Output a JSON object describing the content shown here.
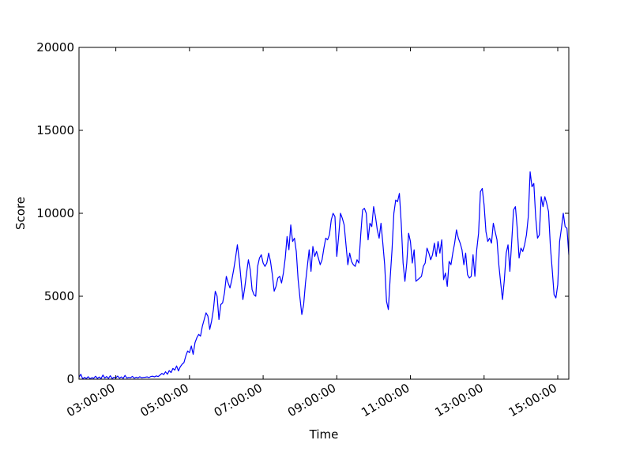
{
  "chart_data": {
    "type": "line",
    "title": "",
    "xlabel": "Time",
    "ylabel": "Score",
    "ylim": [
      0,
      20000
    ],
    "xlim": [
      "02:00:00",
      "15:18:00"
    ],
    "yticks": [
      0,
      5000,
      10000,
      15000,
      20000
    ],
    "yticklabels": [
      "0",
      "5000",
      "10000",
      "15000",
      "20000"
    ],
    "xticks": [
      "03:00:00",
      "05:00:00",
      "07:00:00",
      "09:00:00",
      "11:00:00",
      "13:00:00",
      "15:00:00"
    ],
    "grid": false,
    "legend": "none",
    "series": [
      {
        "color": "#0000ff",
        "x": [
          "02:00:00",
          "02:03:00",
          "02:06:00",
          "02:09:00",
          "02:12:00",
          "02:15:00",
          "02:18:00",
          "02:21:00",
          "02:24:00",
          "02:27:00",
          "02:30:00",
          "02:33:00",
          "02:36:00",
          "02:39:00",
          "02:42:00",
          "02:45:00",
          "02:48:00",
          "02:51:00",
          "02:54:00",
          "02:57:00",
          "03:00:00",
          "03:03:00",
          "03:06:00",
          "03:09:00",
          "03:12:00",
          "03:15:00",
          "03:18:00",
          "03:21:00",
          "03:24:00",
          "03:27:00",
          "03:30:00",
          "03:33:00",
          "03:36:00",
          "03:39:00",
          "03:42:00",
          "03:45:00",
          "03:48:00",
          "03:51:00",
          "03:54:00",
          "03:57:00",
          "04:00:00",
          "04:03:00",
          "04:06:00",
          "04:09:00",
          "04:12:00",
          "04:15:00",
          "04:18:00",
          "04:21:00",
          "04:24:00",
          "04:27:00",
          "04:30:00",
          "04:33:00",
          "04:36:00",
          "04:39:00",
          "04:42:00",
          "04:45:00",
          "04:48:00",
          "04:51:00",
          "04:54:00",
          "04:57:00",
          "05:00:00",
          "05:03:00",
          "05:06:00",
          "05:09:00",
          "05:12:00",
          "05:15:00",
          "05:18:00",
          "05:21:00",
          "05:24:00",
          "05:27:00",
          "05:30:00",
          "05:33:00",
          "05:36:00",
          "05:39:00",
          "05:42:00",
          "05:45:00",
          "05:48:00",
          "05:51:00",
          "05:54:00",
          "05:57:00",
          "06:00:00",
          "06:03:00",
          "06:06:00",
          "06:09:00",
          "06:12:00",
          "06:15:00",
          "06:18:00",
          "06:21:00",
          "06:24:00",
          "06:27:00",
          "06:30:00",
          "06:33:00",
          "06:36:00",
          "06:39:00",
          "06:42:00",
          "06:45:00",
          "06:48:00",
          "06:51:00",
          "06:54:00",
          "06:57:00",
          "07:00:00",
          "07:03:00",
          "07:06:00",
          "07:09:00",
          "07:12:00",
          "07:15:00",
          "07:18:00",
          "07:21:00",
          "07:24:00",
          "07:27:00",
          "07:30:00",
          "07:33:00",
          "07:36:00",
          "07:39:00",
          "07:42:00",
          "07:45:00",
          "07:48:00",
          "07:51:00",
          "07:54:00",
          "07:57:00",
          "08:00:00",
          "08:03:00",
          "08:06:00",
          "08:09:00",
          "08:12:00",
          "08:15:00",
          "08:18:00",
          "08:21:00",
          "08:24:00",
          "08:27:00",
          "08:30:00",
          "08:33:00",
          "08:36:00",
          "08:39:00",
          "08:42:00",
          "08:45:00",
          "08:48:00",
          "08:51:00",
          "08:54:00",
          "08:57:00",
          "09:00:00",
          "09:03:00",
          "09:06:00",
          "09:09:00",
          "09:12:00",
          "09:15:00",
          "09:18:00",
          "09:21:00",
          "09:24:00",
          "09:27:00",
          "09:30:00",
          "09:33:00",
          "09:36:00",
          "09:39:00",
          "09:42:00",
          "09:45:00",
          "09:48:00",
          "09:51:00",
          "09:54:00",
          "09:57:00",
          "10:00:00",
          "10:03:00",
          "10:06:00",
          "10:09:00",
          "10:12:00",
          "10:15:00",
          "10:18:00",
          "10:21:00",
          "10:24:00",
          "10:27:00",
          "10:30:00",
          "10:33:00",
          "10:36:00",
          "10:39:00",
          "10:42:00",
          "10:45:00",
          "10:48:00",
          "10:51:00",
          "10:54:00",
          "10:57:00",
          "11:00:00",
          "11:03:00",
          "11:06:00",
          "11:09:00",
          "11:12:00",
          "11:15:00",
          "11:18:00",
          "11:21:00",
          "11:24:00",
          "11:27:00",
          "11:30:00",
          "11:33:00",
          "11:36:00",
          "11:39:00",
          "11:42:00",
          "11:45:00",
          "11:48:00",
          "11:51:00",
          "11:54:00",
          "11:57:00",
          "12:00:00",
          "12:03:00",
          "12:06:00",
          "12:09:00",
          "12:12:00",
          "12:15:00",
          "12:18:00",
          "12:21:00",
          "12:24:00",
          "12:27:00",
          "12:30:00",
          "12:33:00",
          "12:36:00",
          "12:39:00",
          "12:42:00",
          "12:45:00",
          "12:48:00",
          "12:51:00",
          "12:54:00",
          "12:57:00",
          "13:00:00",
          "13:03:00",
          "13:06:00",
          "13:09:00",
          "13:12:00",
          "13:15:00",
          "13:18:00",
          "13:21:00",
          "13:24:00",
          "13:27:00",
          "13:30:00",
          "13:33:00",
          "13:36:00",
          "13:39:00",
          "13:42:00",
          "13:45:00",
          "13:48:00",
          "13:51:00",
          "13:54:00",
          "13:57:00",
          "14:00:00",
          "14:03:00",
          "14:06:00",
          "14:09:00",
          "14:12:00",
          "14:15:00",
          "14:18:00",
          "14:21:00",
          "14:24:00",
          "14:27:00",
          "14:30:00",
          "14:33:00",
          "14:36:00",
          "14:39:00",
          "14:42:00",
          "14:45:00",
          "14:48:00",
          "14:51:00",
          "14:54:00",
          "14:57:00",
          "15:00:00",
          "15:03:00",
          "15:06:00",
          "15:09:00",
          "15:12:00",
          "15:15:00",
          "15:18:00"
        ],
        "y": [
          120,
          300,
          20,
          110,
          40,
          150,
          30,
          90,
          60,
          180,
          50,
          130,
          40,
          250,
          70,
          160,
          50,
          210,
          40,
          120,
          80,
          190,
          60,
          140,
          50,
          230,
          70,
          110,
          90,
          170,
          60,
          120,
          80,
          150,
          90,
          110,
          120,
          140,
          100,
          160,
          180,
          140,
          200,
          160,
          250,
          350,
          280,
          450,
          300,
          520,
          400,
          650,
          550,
          800,
          500,
          750,
          900,
          1000,
          1400,
          1700,
          1600,
          2000,
          1500,
          2200,
          2500,
          2700,
          2600,
          3200,
          3600,
          4000,
          3800,
          3000,
          3500,
          4200,
          5300,
          5000,
          3600,
          4500,
          4600,
          5200,
          6200,
          5800,
          5500,
          6000,
          6600,
          7300,
          8100,
          7200,
          6000,
          4800,
          5500,
          6400,
          7200,
          6600,
          5400,
          5100,
          5000,
          6800,
          7300,
          7500,
          7000,
          6800,
          7000,
          7600,
          7100,
          6300,
          5300,
          5600,
          6100,
          6200,
          5800,
          6400,
          7300,
          8600,
          7800,
          9300,
          8300,
          8500,
          7700,
          6000,
          4900,
          3900,
          4500,
          5800,
          6800,
          7800,
          6500,
          8000,
          7400,
          7700,
          7300,
          6900,
          7200,
          7900,
          8500,
          8400,
          8700,
          9600,
          10000,
          9800,
          7400,
          8600,
          10000,
          9700,
          9300,
          8100,
          6900,
          7600,
          7100,
          6900,
          6800,
          7200,
          7000,
          8700,
          10200,
          10300,
          10000,
          8400,
          9400,
          9200,
          10400,
          9800,
          9000,
          8500,
          9400,
          8200,
          6900,
          4700,
          4200,
          6100,
          7800,
          10000,
          10800,
          10700,
          11200,
          9400,
          7000,
          5900,
          7000,
          8800,
          8300,
          7000,
          7800,
          5900,
          6000,
          6100,
          6200,
          6800,
          7000,
          7900,
          7600,
          7200,
          7500,
          8200,
          7400,
          8300,
          7600,
          8400,
          6000,
          6400,
          5600,
          7100,
          6900,
          7600,
          8200,
          9000,
          8500,
          8200,
          7800,
          6900,
          7600,
          6300,
          6100,
          6200,
          7500,
          6200,
          7800,
          8800,
          11300,
          11500,
          10500,
          8900,
          8300,
          8500,
          8200,
          9400,
          8900,
          8400,
          6900,
          5800,
          4800,
          6000,
          7600,
          8100,
          6500,
          8300,
          10200,
          10400,
          9100,
          7300,
          7900,
          7700,
          8100,
          8700,
          9800,
          12500,
          11600,
          11800,
          9800,
          8500,
          8700,
          11000,
          10400,
          11000,
          10600,
          10100,
          8000,
          6600,
          5100,
          4900,
          5700,
          8300,
          9100,
          10000,
          9200,
          9100,
          7500
        ]
      }
    ]
  }
}
